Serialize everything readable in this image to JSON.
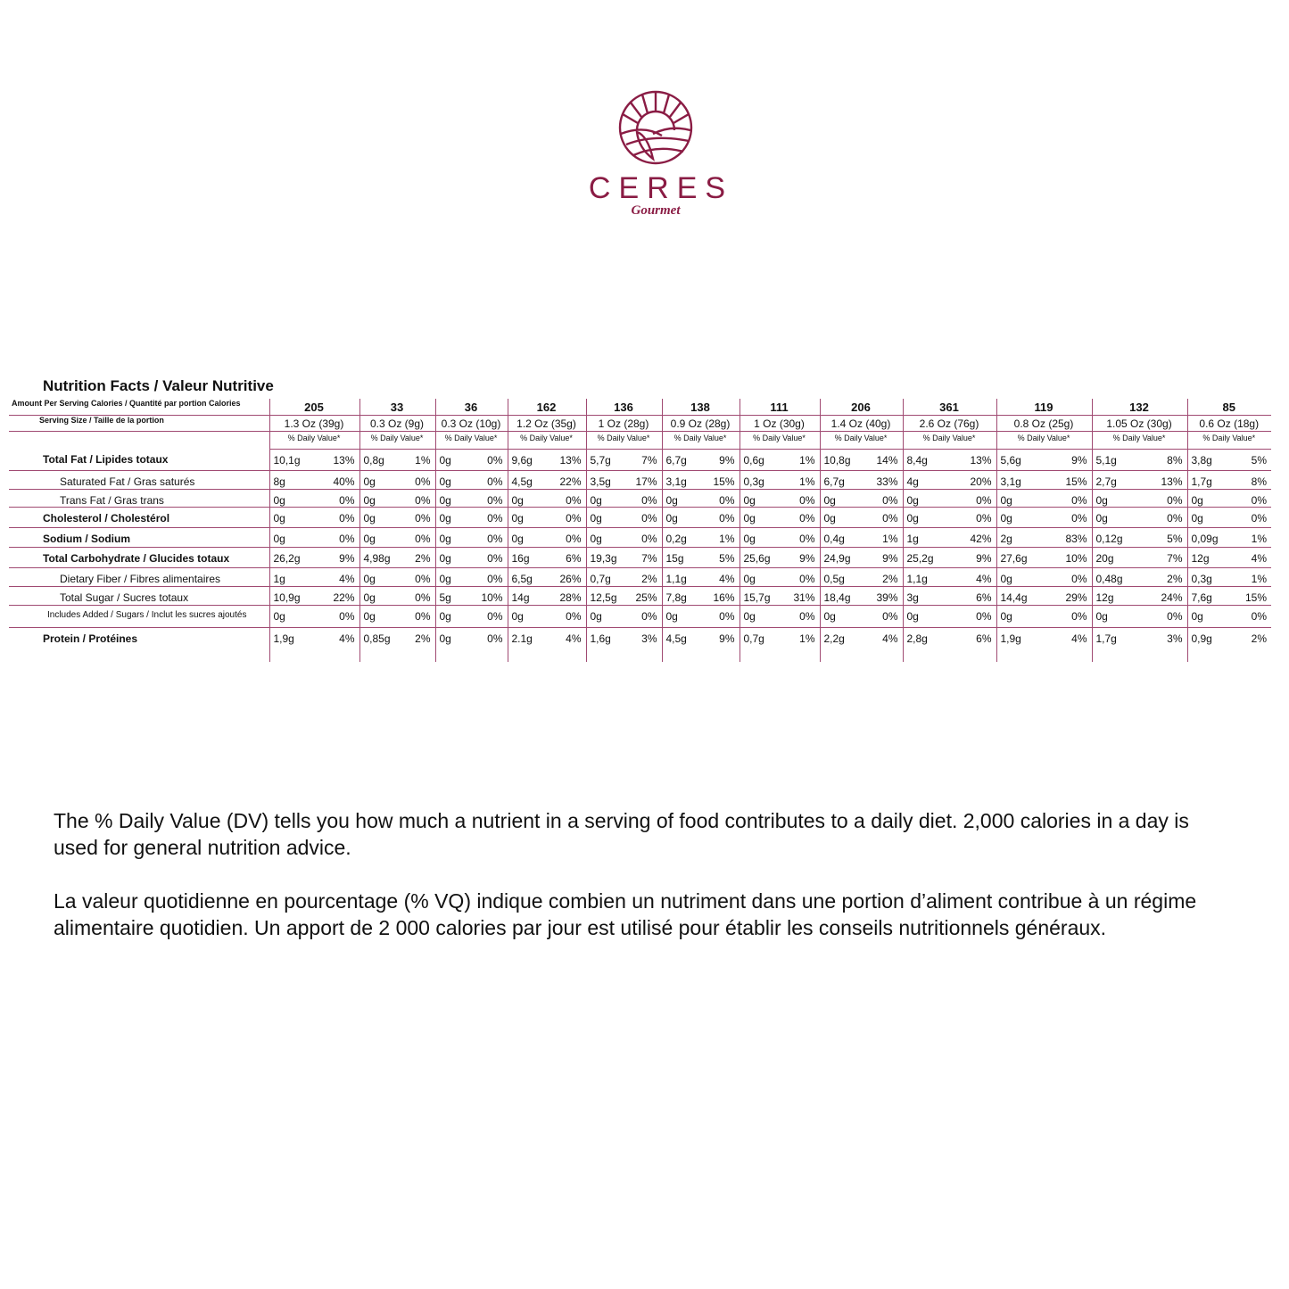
{
  "brand": {
    "name": "CERES",
    "tagline": "Gourmet",
    "color": "#8a1c44"
  },
  "title": "Nutrition Facts / Valeur Nutritive",
  "header_labels": {
    "calories": "Amount Per Serving Calories / Quantité par portion Calories",
    "serving": "Serving Size / Taille de la portion",
    "dv": "% Daily Value*"
  },
  "nutrients": [
    {
      "label": "Total Fat / Lipides totaux",
      "bold": true,
      "indent": false
    },
    {
      "label": "Saturated Fat / Gras saturés",
      "bold": false,
      "indent": true
    },
    {
      "label": "Trans Fat / Gras trans",
      "bold": false,
      "indent": true
    },
    {
      "label": "Cholesterol / Cholestérol",
      "bold": true,
      "indent": false
    },
    {
      "label": "Sodium / Sodium",
      "bold": true,
      "indent": false
    },
    {
      "label": "Total Carbohydrate / Glucides totaux",
      "bold": true,
      "indent": false
    },
    {
      "label": "Dietary Fiber / Fibres alimentaires",
      "bold": false,
      "indent": true
    },
    {
      "label": "Total Sugar / Sucres totaux",
      "bold": false,
      "indent": true
    },
    {
      "label": "Includes Added / Sugars / Inclut les sucres ajoutés",
      "bold": false,
      "indent": false,
      "small": true
    },
    {
      "label": "Protein / Protéines",
      "bold": true,
      "indent": false
    }
  ],
  "columns": [
    {
      "calories": "205",
      "serving": "1.3 Oz (39g)",
      "values": [
        [
          "10,1g",
          "13%"
        ],
        [
          "8g",
          "40%"
        ],
        [
          "0g",
          "0%"
        ],
        [
          "0g",
          "0%"
        ],
        [
          "0g",
          "0%"
        ],
        [
          "26,2g",
          "9%"
        ],
        [
          "1g",
          "4%"
        ],
        [
          "10,9g",
          "22%"
        ],
        [
          "0g",
          "0%"
        ],
        [
          "1,9g",
          "4%"
        ]
      ]
    },
    {
      "calories": "33",
      "serving": "0.3 Oz (9g)",
      "values": [
        [
          "0,8g",
          "1%"
        ],
        [
          "0g",
          "0%"
        ],
        [
          "0g",
          "0%"
        ],
        [
          "0g",
          "0%"
        ],
        [
          "0g",
          "0%"
        ],
        [
          "4,98g",
          "2%"
        ],
        [
          "0g",
          "0%"
        ],
        [
          "0g",
          "0%"
        ],
        [
          "0g",
          "0%"
        ],
        [
          "0,85g",
          "2%"
        ]
      ]
    },
    {
      "calories": "36",
      "serving": "0.3 Oz (10g)",
      "values": [
        [
          "0g",
          "0%"
        ],
        [
          "0g",
          "0%"
        ],
        [
          "0g",
          "0%"
        ],
        [
          "0g",
          "0%"
        ],
        [
          "0g",
          "0%"
        ],
        [
          "0g",
          "0%"
        ],
        [
          "0g",
          "0%"
        ],
        [
          "5g",
          "10%"
        ],
        [
          "0g",
          "0%"
        ],
        [
          "0g",
          "0%"
        ]
      ]
    },
    {
      "calories": "162",
      "serving": "1.2 Oz (35g)",
      "values": [
        [
          "9,6g",
          "13%"
        ],
        [
          "4,5g",
          "22%"
        ],
        [
          "0g",
          "0%"
        ],
        [
          "0g",
          "0%"
        ],
        [
          "0g",
          "0%"
        ],
        [
          "16g",
          "6%"
        ],
        [
          "6,5g",
          "26%"
        ],
        [
          "14g",
          "28%"
        ],
        [
          "0g",
          "0%"
        ],
        [
          "2.1g",
          "4%"
        ]
      ]
    },
    {
      "calories": "136",
      "serving": "1 Oz (28g)",
      "values": [
        [
          "5,7g",
          "7%"
        ],
        [
          "3,5g",
          "17%"
        ],
        [
          "0g",
          "0%"
        ],
        [
          "0g",
          "0%"
        ],
        [
          "0g",
          "0%"
        ],
        [
          "19,3g",
          "7%"
        ],
        [
          "0,7g",
          "2%"
        ],
        [
          "12,5g",
          "25%"
        ],
        [
          "0g",
          "0%"
        ],
        [
          "1,6g",
          "3%"
        ]
      ]
    },
    {
      "calories": "138",
      "serving": "0.9 Oz (28g)",
      "values": [
        [
          "6,7g",
          "9%"
        ],
        [
          "3,1g",
          "15%"
        ],
        [
          "0g",
          "0%"
        ],
        [
          "0g",
          "0%"
        ],
        [
          "0,2g",
          "1%"
        ],
        [
          "15g",
          "5%"
        ],
        [
          "1,1g",
          "4%"
        ],
        [
          "7,8g",
          "16%"
        ],
        [
          "0g",
          "0%"
        ],
        [
          "4,5g",
          "9%"
        ]
      ]
    },
    {
      "calories": "111",
      "serving": "1 Oz (30g)",
      "values": [
        [
          "0,6g",
          "1%"
        ],
        [
          "0,3g",
          "1%"
        ],
        [
          "0g",
          "0%"
        ],
        [
          "0g",
          "0%"
        ],
        [
          "0g",
          "0%"
        ],
        [
          "25,6g",
          "9%"
        ],
        [
          "0g",
          "0%"
        ],
        [
          "15,7g",
          "31%"
        ],
        [
          "0g",
          "0%"
        ],
        [
          "0,7g",
          "1%"
        ]
      ]
    },
    {
      "calories": "206",
      "serving": "1.4 Oz (40g)",
      "values": [
        [
          "10,8g",
          "14%"
        ],
        [
          "6,7g",
          "33%"
        ],
        [
          "0g",
          "0%"
        ],
        [
          "0g",
          "0%"
        ],
        [
          "0,4g",
          "1%"
        ],
        [
          "24,9g",
          "9%"
        ],
        [
          "0,5g",
          "2%"
        ],
        [
          "18,4g",
          "39%"
        ],
        [
          "0g",
          "0%"
        ],
        [
          "2,2g",
          "4%"
        ]
      ]
    },
    {
      "calories": "361",
      "serving": "2.6 Oz (76g)",
      "values": [
        [
          "8,4g",
          "13%"
        ],
        [
          "4g",
          "20%"
        ],
        [
          "0g",
          "0%"
        ],
        [
          "0g",
          "0%"
        ],
        [
          "1g",
          "42%"
        ],
        [
          "25,2g",
          "9%"
        ],
        [
          "1,1g",
          "4%"
        ],
        [
          "3g",
          "6%"
        ],
        [
          "0g",
          "0%"
        ],
        [
          "2,8g",
          "6%"
        ]
      ]
    },
    {
      "calories": "119",
      "serving": "0.8 Oz (25g)",
      "values": [
        [
          "5,6g",
          "9%"
        ],
        [
          "3,1g",
          "15%"
        ],
        [
          "0g",
          "0%"
        ],
        [
          "0g",
          "0%"
        ],
        [
          "2g",
          "83%"
        ],
        [
          "27,6g",
          "10%"
        ],
        [
          "0g",
          "0%"
        ],
        [
          "14,4g",
          "29%"
        ],
        [
          "0g",
          "0%"
        ],
        [
          "1,9g",
          "4%"
        ]
      ]
    },
    {
      "calories": "132",
      "serving": "1.05 Oz (30g)",
      "values": [
        [
          "5,1g",
          "8%"
        ],
        [
          "2,7g",
          "13%"
        ],
        [
          "0g",
          "0%"
        ],
        [
          "0g",
          "0%"
        ],
        [
          "0,12g",
          "5%"
        ],
        [
          "20g",
          "7%"
        ],
        [
          "0,48g",
          "2%"
        ],
        [
          "12g",
          "24%"
        ],
        [
          "0g",
          "0%"
        ],
        [
          "1,7g",
          "3%"
        ]
      ]
    },
    {
      "calories": "85",
      "serving": "0.6 Oz (18g)",
      "values": [
        [
          "3,8g",
          "5%"
        ],
        [
          "1,7g",
          "8%"
        ],
        [
          "0g",
          "0%"
        ],
        [
          "0g",
          "0%"
        ],
        [
          "0,09g",
          "1%"
        ],
        [
          "12g",
          "4%"
        ],
        [
          "0,3g",
          "1%"
        ],
        [
          "7,6g",
          "15%"
        ],
        [
          "0g",
          "0%"
        ],
        [
          "0,9g",
          "2%"
        ]
      ]
    }
  ],
  "footnote": {
    "en": "The % Daily Value (DV) tells you how much a nutrient in a serving of food contributes to a daily diet. 2,000 calories in a day is used for general nutrition advice.",
    "fr": "La valeur quotidienne en pourcentage (% VQ) indique combien un nutriment dans une portion d’aliment contribue à un régime alimentaire quotidien. Un apport de 2 000 calories par jour est utilisé pour établir les conseils nutritionnels généraux."
  }
}
